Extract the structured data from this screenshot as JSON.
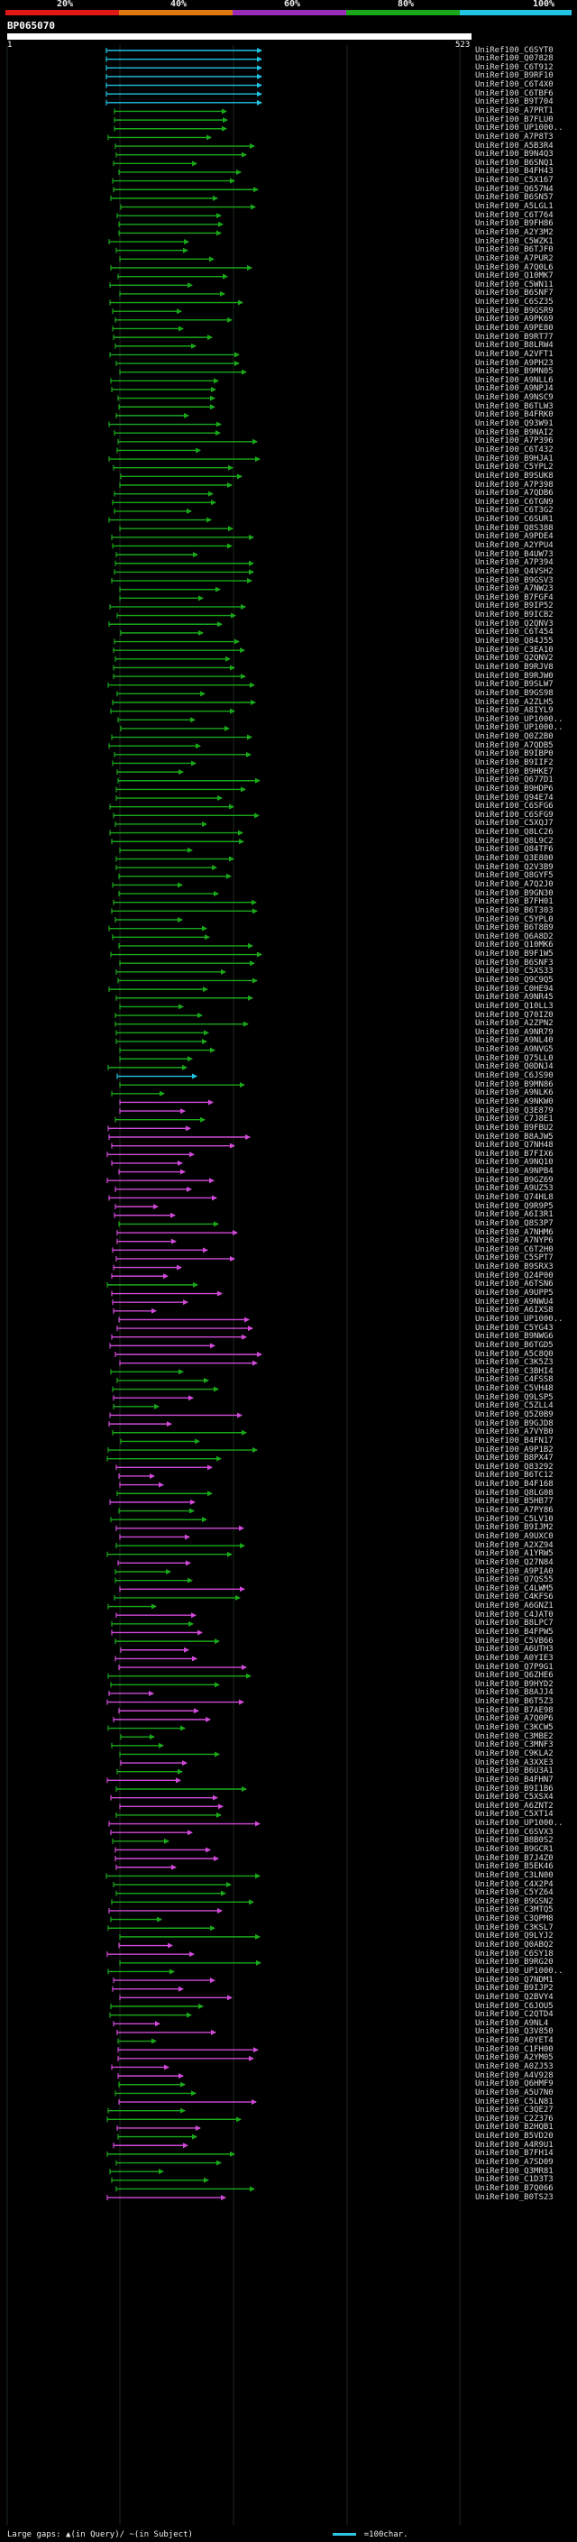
{
  "legend": {
    "percent_labels": [
      "20%",
      "40%",
      "60%",
      "80%",
      "100%"
    ],
    "colors": [
      "#e01818",
      "#e07a10",
      "#9a2ab8",
      "#1aa81a",
      "#22c4e6"
    ]
  },
  "query": {
    "id": "BP065070",
    "start": "1",
    "end": "523"
  },
  "footer": {
    "gaps_text": "Large gaps: ▲(in Query)/ ~(in Subject)",
    "scale_text": "=100char."
  },
  "hits": [
    "UniRef100_C6SYT0",
    "UniRef100_Q07828",
    "UniRef100_C6T912",
    "UniRef100_B9RF10",
    "UniRef100_C6T4X0",
    "UniRef100_C6TBF6",
    "UniRef100_B9T704",
    "UniRef100_A7PRT1",
    "UniRef100_B7FLU0",
    "UniRef100_UP1000..",
    "UniRef100_A7P8T3",
    "UniRef100_A5B3R4",
    "UniRef100_B9N4Q3",
    "UniRef100_B6SNQ1",
    "UniRef100_B4FH43",
    "UniRef100_C5X167",
    "UniRef100_Q657N4",
    "UniRef100_B6SN57",
    "UniRef100_A5LGL1",
    "UniRef100_C6T764",
    "UniRef100_B9FH86",
    "UniRef100_A2Y3M2",
    "UniRef100_C5WZK1",
    "UniRef100_B6TJF0",
    "UniRef100_A7PUR2",
    "UniRef100_A7Q0L6",
    "UniRef100_Q10MK7",
    "UniRef100_C5WN11",
    "UniRef100_B6SNF7",
    "UniRef100_C6SZ35",
    "UniRef100_B9GSR9",
    "UniRef100_A9PK69",
    "UniRef100_A9PE80",
    "UniRef100_B9RT77",
    "UniRef100_B8LRW4",
    "UniRef100_A2VFT1",
    "UniRef100_A9PH23",
    "UniRef100_B9MN05",
    "UniRef100_A9NLL6",
    "UniRef100_A9NPJ4",
    "UniRef100_A9NSC9",
    "UniRef100_B6TLW3",
    "UniRef100_B4FRK0",
    "UniRef100_Q93W91",
    "UniRef100_B9NAI2",
    "UniRef100_A7P396",
    "UniRef100_C6T432",
    "UniRef100_B9HJA1",
    "UniRef100_C5YPL2",
    "UniRef100_B9SUK8",
    "UniRef100_A7P398",
    "UniRef100_A7QDB6",
    "UniRef100_C6TGN9",
    "UniRef100_C6T3G2",
    "UniRef100_C6SUR1",
    "UniRef100_Q8S388",
    "UniRef100_A9PDE4",
    "UniRef100_A2YPU4",
    "UniRef100_B4UW73",
    "UniRef100_A7P394",
    "UniRef100_Q4VSH2",
    "UniRef100_B9GSV3",
    "UniRef100_A7NW23",
    "UniRef100_B7FGF4",
    "UniRef100_B9IP52",
    "UniRef100_B9ICB2",
    "UniRef100_Q2QNV3",
    "UniRef100_C6T454",
    "UniRef100_Q84J55",
    "UniRef100_C3EA10",
    "UniRef100_Q2QNV2",
    "UniRef100_B9RJV8",
    "UniRef100_B9RJW0",
    "UniRef100_B9SLW7",
    "UniRef100_B9GS98",
    "UniRef100_A2ZLH5",
    "UniRef100_A8IYL9",
    "UniRef100_UP1000..",
    "UniRef100_UP1000..",
    "UniRef100_Q0Z2B0",
    "UniRef100_A7QDB5",
    "UniRef100_B9IBP0",
    "UniRef100_B9IIF2",
    "UniRef100_B9HKE7",
    "UniRef100_Q677D1",
    "UniRef100_B9HDP6",
    "UniRef100_Q94E74",
    "UniRef100_C6SFG6",
    "UniRef100_C6SFG9",
    "UniRef100_C5XQJ7",
    "UniRef100_Q8LC26",
    "UniRef100_Q8L9C2",
    "UniRef100_Q84TF6",
    "UniRef100_Q3E800",
    "UniRef100_Q2V3B9",
    "UniRef100_Q8GYF5",
    "UniRef100_A7Q2J0",
    "UniRef100_B9GN30",
    "UniRef100_B7FH01",
    "UniRef100_B6T303",
    "UniRef100_C5YPL0",
    "UniRef100_B6T8B9",
    "UniRef100_Q6A8D2",
    "UniRef100_Q10MK6",
    "UniRef100_B9F1W5",
    "UniRef100_B6SNF3",
    "UniRef100_C5XS33",
    "UniRef100_Q9C9Q5",
    "UniRef100_C0HE94",
    "UniRef100_A9NR45",
    "UniRef100_Q10LL3",
    "UniRef100_Q70IZ0",
    "UniRef100_A2ZPN2",
    "UniRef100_A9NR79",
    "UniRef100_A9NL40",
    "UniRef100_A9NVG5",
    "UniRef100_Q75LL0",
    "UniRef100_Q0DNJ4",
    "UniRef100_C6JS90",
    "UniRef100_B9MN86",
    "UniRef100_A9NLK6",
    "UniRef100_A9NKW0",
    "UniRef100_Q3E879",
    "UniRef100_C7J8E1",
    "UniRef100_B9FBU2",
    "UniRef100_B8AJW5",
    "UniRef100_Q7NH48",
    "UniRef100_B7FIX6",
    "UniRef100_A9NQ10",
    "UniRef100_A9NPB4",
    "UniRef100_B9GZ69",
    "UniRef100_A9UZ53",
    "UniRef100_Q74HL8",
    "UniRef100_Q9R9P5",
    "UniRef100_A6I3R1",
    "UniRef100_Q8S3P7",
    "UniRef100_A7NHM6",
    "UniRef100_A7NYP6",
    "UniRef100_C6T2H0",
    "UniRef100_C5SPT7",
    "UniRef100_B9SRX3",
    "UniRef100_Q24P00",
    "UniRef100_A6TSN6",
    "UniRef100_A9UPP5",
    "UniRef100_A9NWU4",
    "UniRef100_A6IXS8",
    "UniRef100_UP1000..",
    "UniRef100_C5YG43",
    "UniRef100_B9NWG6",
    "UniRef100_B6TGD5",
    "UniRef100_A5C8Q0",
    "UniRef100_C3K5Z3",
    "UniRef100_C3BHI4",
    "UniRef100_C4FSS8",
    "UniRef100_C5VH48",
    "UniRef100_Q9LSP5",
    "UniRef100_C5ZLL4",
    "UniRef100_Q5Z0B9",
    "UniRef100_B9GJD8",
    "UniRef100_A7VYB0",
    "UniRef100_B4FN17",
    "UniRef100_A9P1B2",
    "UniRef100_B8PX47",
    "UniRef100_Q83292",
    "UniRef100_B6TC12",
    "UniRef100_B4F168",
    "UniRef100_Q8LG08",
    "UniRef100_B5HB77",
    "UniRef100_A7PY86",
    "UniRef100_C5LV10",
    "UniRef100_B9IJM2",
    "UniRef100_A9UXC0",
    "UniRef100_A2XZ94",
    "UniRef100_A1YRW5",
    "UniRef100_Q27N84",
    "UniRef100_A9PIA0",
    "UniRef100_Q7QS55",
    "UniRef100_C4LWM5",
    "UniRef100_C4KFS6",
    "UniRef100_A6GNZ1",
    "UniRef100_C4JAT0",
    "UniRef100_B8LPC7",
    "UniRef100_B4FPW5",
    "UniRef100_C5VB66",
    "UniRef100_A6UTH3",
    "UniRef100_A0YIE3",
    "UniRef100_Q7P9G1",
    "UniRef100_Q6ZHE6",
    "UniRef100_B9HYD2",
    "UniRef100_B8AJJ4",
    "UniRef100_B6T5Z3",
    "UniRef100_B7AE98",
    "UniRef100_A7Q0P6",
    "UniRef100_C3KCW5",
    "UniRef100_C3MBE2",
    "UniRef100_C3MNF3",
    "UniRef100_C9KLA2",
    "UniRef100_A3XXE3",
    "UniRef100_B6U3A1",
    "UniRef100_B4FHN7",
    "UniRef100_B9I1B6",
    "UniRef100_C5XSX4",
    "UniRef100_A6ZNT2",
    "UniRef100_C5XT14",
    "UniRef100_UP1000..",
    "UniRef100_C6SVX3",
    "UniRef100_B8B0S2",
    "UniRef100_B9GCR1",
    "UniRef100_B7J4Z0",
    "UniRef100_B5EK46",
    "UniRef100_C3LN00",
    "UniRef100_C4X2P4",
    "UniRef100_C5YZ64",
    "UniRef100_B9GSN2",
    "UniRef100_C3MTQ5",
    "UniRef100_C3QPM8",
    "UniRef100_C3KSL7",
    "UniRef100_Q9LYJ2",
    "UniRef100_Q0ABQ2",
    "UniRef100_C6SY18",
    "UniRef100_B9RG20",
    "UniRef100_UP1000..",
    "UniRef100_Q7NDM1",
    "UniRef100_B9IJP2",
    "UniRef100_Q2BVY4",
    "UniRef100_C6JOU5",
    "UniRef100_C2QTD4",
    "UniRef100_A9NL4",
    "UniRef100_Q3V850",
    "UniRef100_A0YET4",
    "UniRef100_C1FH00",
    "UniRef100_A2YM05",
    "UniRef100_A0ZJ53",
    "UniRef100_A4V928",
    "UniRef100_Q6HMF9",
    "UniRef100_A5U7N0",
    "UniRef100_C5LN81",
    "UniRef100_C3QE27",
    "UniRef100_C2Z376",
    "UniRef100_B2HQB1",
    "UniRef100_B5VD20",
    "UniRef100_A4R9U1",
    "UniRef100_B7FH14",
    "UniRef100_A7SD09",
    "UniRef100_Q3MR81",
    "UniRef100_C1D3T3",
    "UniRef100_B7Q066",
    "UniRef100_B0TS23"
  ]
}
